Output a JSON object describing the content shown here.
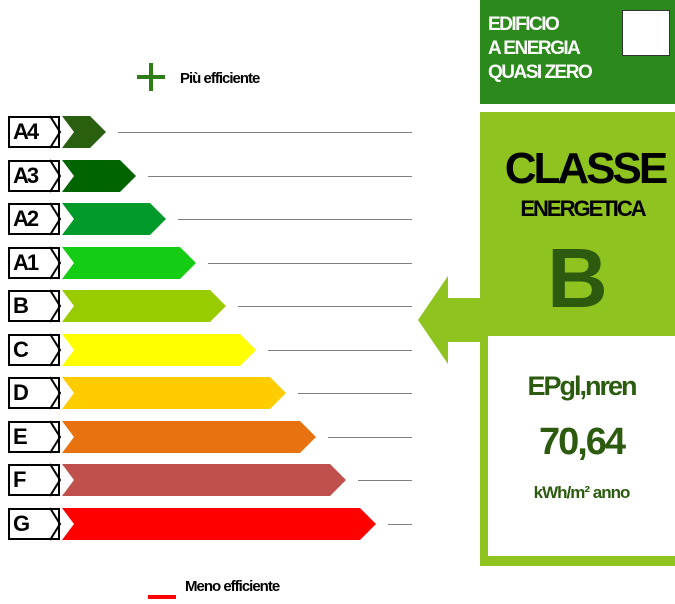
{
  "legend": {
    "more_efficient": "Più efficiente",
    "less_efficient": "Meno efficiente",
    "plus_color": "#2e7d16",
    "minus_color": "#ff0000"
  },
  "classes": [
    {
      "label": "A4",
      "color": "#2a5f10"
    },
    {
      "label": "A3",
      "color": "#006400"
    },
    {
      "label": "A2",
      "color": "#009a2b"
    },
    {
      "label": "A1",
      "color": "#14cc14"
    },
    {
      "label": "B",
      "color": "#99cc00"
    },
    {
      "label": "C",
      "color": "#ffff00"
    },
    {
      "label": "D",
      "color": "#ffcc00"
    },
    {
      "label": "E",
      "color": "#e87210"
    },
    {
      "label": "F",
      "color": "#c0504d"
    },
    {
      "label": "G",
      "color": "#ff0000"
    }
  ],
  "nzeb": {
    "line1": "EDIFICIO",
    "line2": "A ENERGIA",
    "line3": "QUASI ZERO",
    "bg_color": "#2c8a1d",
    "checked": false
  },
  "energy_class": {
    "title_line1": "CLASSE",
    "title_line2": "ENERGETICA",
    "value": "B",
    "panel_color": "#8fc31f",
    "pointer_color": "#8fc31f"
  },
  "performance": {
    "indicator": "EPgl,nren",
    "value": "70,64",
    "unit": "kWh/m² anno"
  }
}
